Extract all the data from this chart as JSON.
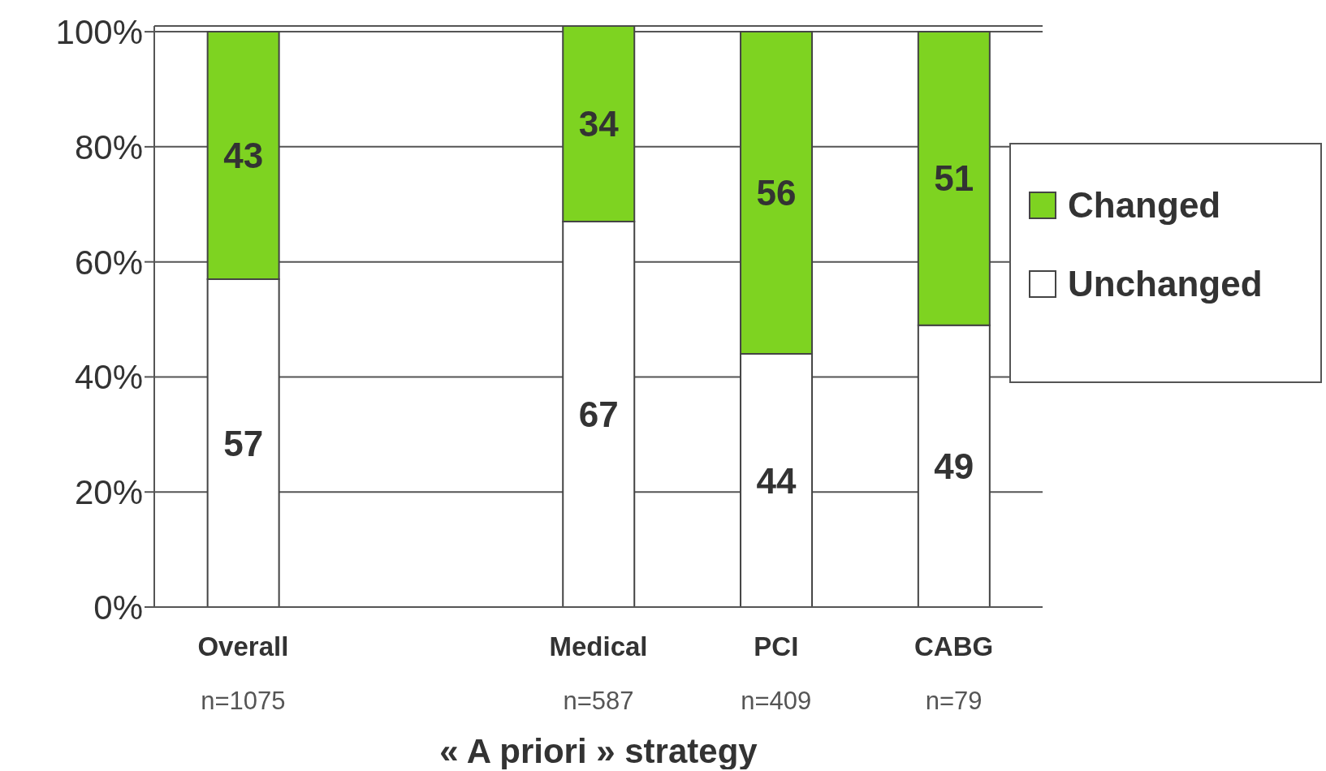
{
  "chart_data": {
    "type": "bar",
    "stacked": true,
    "xlabel": "« A priori » strategy",
    "categories": [
      "Overall\nn=1075",
      null,
      "Medical\nn=587",
      "PCI\nn=409",
      "CABG\nn=79"
    ],
    "series": [
      {
        "name": "Unchanged",
        "color": "#ffffff",
        "values": [
          57,
          null,
          67,
          44,
          49
        ]
      },
      {
        "name": "Changed",
        "color": "#7ed321",
        "values": [
          43,
          null,
          34,
          56,
          51
        ]
      }
    ],
    "ylim": [
      0,
      101
    ],
    "yticks": [
      {
        "value": 0,
        "label": "0%"
      },
      {
        "value": 20,
        "label": "20%"
      },
      {
        "value": 40,
        "label": "40%"
      },
      {
        "value": 60,
        "label": "60%"
      },
      {
        "value": 80,
        "label": "80%"
      },
      {
        "value": 100,
        "label": "100%"
      }
    ],
    "grid": "y",
    "legend": "right",
    "data_labels": true
  }
}
